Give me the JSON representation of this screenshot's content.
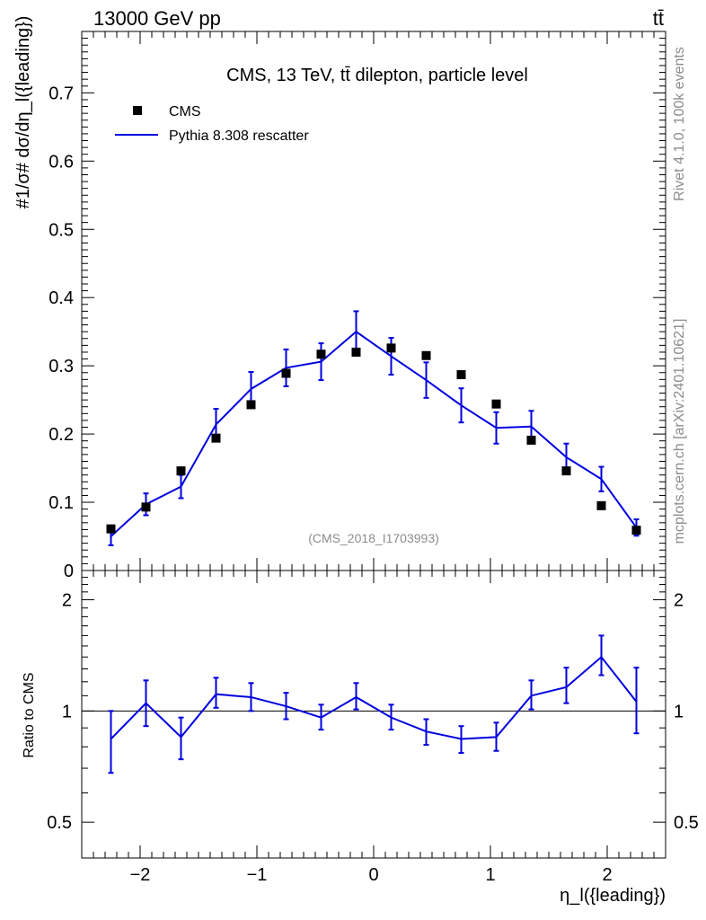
{
  "header": {
    "energy_label": "13000 GeV pp",
    "process_label": "tt̄"
  },
  "side_labels": {
    "rivet": "Rivet 4.1.0,  100k events",
    "mcplots": "mcplots.cern.ch [arXiv:2401.10621]"
  },
  "chart_data": [
    {
      "type": "scatter",
      "panel": "main",
      "title": "CMS, 13 TeV, tt̄ dilepton, particle level",
      "watermark": "(CMS_2018_I1703993)",
      "ylabel": "#1/σ# dσ/dη_l({leading})",
      "ylim": [
        0,
        0.79
      ],
      "yticks": [
        "0",
        "0.1",
        "0.2",
        "0.3",
        "0.4",
        "0.5",
        "0.6",
        "0.7"
      ],
      "xlim": [
        -2.5,
        2.5
      ],
      "x": [
        -2.25,
        -1.95,
        -1.65,
        -1.35,
        -1.05,
        -0.75,
        -0.45,
        -0.15,
        0.15,
        0.45,
        0.75,
        1.05,
        1.35,
        1.65,
        1.95,
        2.25
      ],
      "series": [
        {
          "name": "CMS",
          "style": "markers",
          "color": "#000000",
          "values": [
            0.061,
            0.093,
            0.146,
            0.194,
            0.243,
            0.289,
            0.317,
            0.32,
            0.326,
            0.315,
            0.287,
            0.244,
            0.191,
            0.146,
            0.095,
            0.059
          ]
        },
        {
          "name": "Pythia 8.308 rescatter",
          "style": "line",
          "color": "#0000e0",
          "values": [
            0.05,
            0.097,
            0.123,
            0.214,
            0.266,
            0.297,
            0.306,
            0.35,
            0.314,
            0.279,
            0.242,
            0.209,
            0.211,
            0.166,
            0.134,
            0.063
          ],
          "errors": [
            0.013,
            0.016,
            0.017,
            0.023,
            0.025,
            0.027,
            0.027,
            0.03,
            0.027,
            0.026,
            0.025,
            0.023,
            0.023,
            0.02,
            0.018,
            0.012
          ]
        }
      ]
    },
    {
      "type": "line",
      "panel": "ratio",
      "ylabel": "Ratio to CMS",
      "xlabel": "η_l({leading})",
      "ylim_log": [
        0.4,
        2.4
      ],
      "yticks": [
        "0.5",
        "1",
        "2"
      ],
      "xticks": [
        "−2",
        "−1",
        "0",
        "1",
        "2"
      ],
      "reference_line": 1.0,
      "x": [
        -2.25,
        -1.95,
        -1.65,
        -1.35,
        -1.05,
        -0.75,
        -0.45,
        -0.15,
        0.15,
        0.45,
        0.75,
        1.05,
        1.35,
        1.65,
        1.95,
        2.25
      ],
      "series": [
        {
          "name": "Pythia 8.308 rescatter / CMS",
          "color": "#0000e0",
          "values": [
            0.84,
            1.05,
            0.85,
            1.11,
            1.09,
            1.03,
            0.96,
            1.09,
            0.96,
            0.88,
            0.84,
            0.85,
            1.1,
            1.16,
            1.4,
            1.06
          ],
          "err_low": [
            0.16,
            0.14,
            0.11,
            0.09,
            0.09,
            0.08,
            0.07,
            0.08,
            0.07,
            0.07,
            0.07,
            0.07,
            0.09,
            0.11,
            0.15,
            0.19
          ],
          "err_high": [
            0.16,
            0.16,
            0.11,
            0.12,
            0.1,
            0.09,
            0.08,
            0.1,
            0.08,
            0.07,
            0.07,
            0.08,
            0.11,
            0.15,
            0.2,
            0.25
          ]
        }
      ]
    }
  ]
}
